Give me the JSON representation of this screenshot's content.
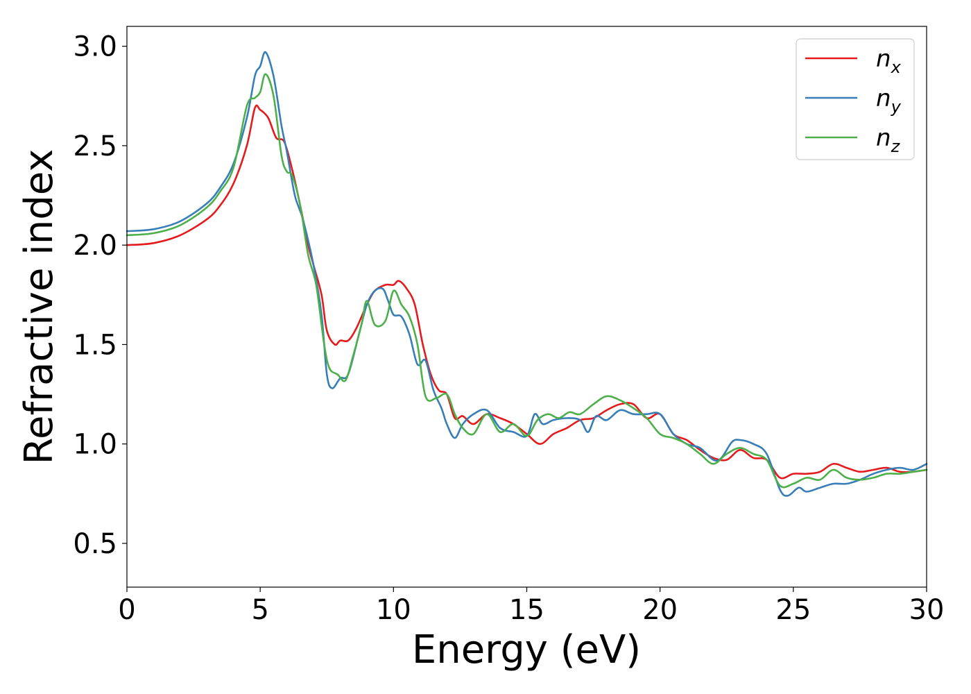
{
  "chart_data": {
    "type": "line",
    "title": "",
    "xlabel": "Energy (eV)",
    "ylabel": "Refractive index",
    "xlim": [
      0,
      30
    ],
    "ylim": [
      0.28,
      3.1
    ],
    "xticks": [
      0,
      5,
      10,
      15,
      20,
      25,
      30
    ],
    "xtick_labels": [
      "0",
      "5",
      "10",
      "15",
      "20",
      "25",
      "30"
    ],
    "yticks": [
      0.5,
      1.0,
      1.5,
      2.0,
      2.5,
      3.0
    ],
    "ytick_labels": [
      "0.5",
      "1.0",
      "1.5",
      "2.0",
      "2.5",
      "3.0"
    ],
    "grid": false,
    "legend_position": "top-right",
    "series": [
      {
        "name": "n",
        "subscript": "x",
        "color": "#e41a1c",
        "points": [
          [
            0,
            2.0
          ],
          [
            1,
            2.01
          ],
          [
            2,
            2.05
          ],
          [
            3,
            2.13
          ],
          [
            3.5,
            2.2
          ],
          [
            4,
            2.31
          ],
          [
            4.5,
            2.5
          ],
          [
            4.8,
            2.69
          ],
          [
            5.0,
            2.68
          ],
          [
            5.3,
            2.64
          ],
          [
            5.6,
            2.54
          ],
          [
            5.9,
            2.52
          ],
          [
            6.2,
            2.38
          ],
          [
            6.5,
            2.2
          ],
          [
            6.8,
            2.0
          ],
          [
            7.0,
            1.9
          ],
          [
            7.3,
            1.75
          ],
          [
            7.5,
            1.57
          ],
          [
            7.8,
            1.5
          ],
          [
            8.0,
            1.52
          ],
          [
            8.3,
            1.52
          ],
          [
            8.6,
            1.58
          ],
          [
            9.0,
            1.7
          ],
          [
            9.3,
            1.77
          ],
          [
            9.7,
            1.8
          ],
          [
            10.0,
            1.8
          ],
          [
            10.2,
            1.82
          ],
          [
            10.5,
            1.78
          ],
          [
            10.8,
            1.7
          ],
          [
            11.1,
            1.5
          ],
          [
            11.4,
            1.35
          ],
          [
            11.7,
            1.27
          ],
          [
            12.0,
            1.25
          ],
          [
            12.3,
            1.13
          ],
          [
            12.6,
            1.14
          ],
          [
            13.0,
            1.1
          ],
          [
            13.5,
            1.15
          ],
          [
            14.0,
            1.13
          ],
          [
            14.5,
            1.1
          ],
          [
            15.0,
            1.05
          ],
          [
            15.5,
            1.0
          ],
          [
            16.0,
            1.05
          ],
          [
            16.5,
            1.08
          ],
          [
            17.0,
            1.12
          ],
          [
            17.5,
            1.13
          ],
          [
            18.0,
            1.17
          ],
          [
            18.5,
            1.2
          ],
          [
            19.0,
            1.2
          ],
          [
            19.5,
            1.13
          ],
          [
            20.0,
            1.15
          ],
          [
            20.5,
            1.05
          ],
          [
            21.0,
            1.02
          ],
          [
            21.5,
            0.97
          ],
          [
            22.0,
            0.93
          ],
          [
            22.5,
            0.92
          ],
          [
            23.0,
            0.97
          ],
          [
            23.5,
            0.93
          ],
          [
            24.0,
            0.92
          ],
          [
            24.5,
            0.83
          ],
          [
            25.0,
            0.85
          ],
          [
            25.5,
            0.85
          ],
          [
            26.0,
            0.86
          ],
          [
            26.5,
            0.9
          ],
          [
            27.0,
            0.88
          ],
          [
            27.5,
            0.86
          ],
          [
            28.0,
            0.87
          ],
          [
            28.5,
            0.88
          ],
          [
            29.0,
            0.86
          ],
          [
            29.5,
            0.86
          ],
          [
            30.0,
            0.87
          ]
        ]
      },
      {
        "name": "n",
        "subscript": "y",
        "color": "#377eb8",
        "points": [
          [
            0,
            2.07
          ],
          [
            1,
            2.08
          ],
          [
            2,
            2.12
          ],
          [
            3,
            2.21
          ],
          [
            3.5,
            2.29
          ],
          [
            4,
            2.41
          ],
          [
            4.5,
            2.64
          ],
          [
            4.8,
            2.85
          ],
          [
            5.0,
            2.9
          ],
          [
            5.2,
            2.97
          ],
          [
            5.5,
            2.85
          ],
          [
            5.8,
            2.6
          ],
          [
            6.0,
            2.47
          ],
          [
            6.3,
            2.25
          ],
          [
            6.6,
            2.13
          ],
          [
            7.0,
            1.9
          ],
          [
            7.3,
            1.65
          ],
          [
            7.5,
            1.35
          ],
          [
            7.7,
            1.28
          ],
          [
            8.0,
            1.33
          ],
          [
            8.3,
            1.35
          ],
          [
            8.7,
            1.55
          ],
          [
            9.0,
            1.7
          ],
          [
            9.3,
            1.77
          ],
          [
            9.6,
            1.78
          ],
          [
            9.8,
            1.72
          ],
          [
            10.0,
            1.65
          ],
          [
            10.3,
            1.64
          ],
          [
            10.6,
            1.55
          ],
          [
            10.9,
            1.4
          ],
          [
            11.2,
            1.42
          ],
          [
            11.5,
            1.27
          ],
          [
            11.8,
            1.18
          ],
          [
            12.0,
            1.1
          ],
          [
            12.3,
            1.03
          ],
          [
            12.6,
            1.1
          ],
          [
            13.0,
            1.15
          ],
          [
            13.5,
            1.17
          ],
          [
            14.0,
            1.08
          ],
          [
            14.5,
            1.06
          ],
          [
            15.0,
            1.04
          ],
          [
            15.3,
            1.15
          ],
          [
            15.6,
            1.1
          ],
          [
            16.0,
            1.12
          ],
          [
            16.5,
            1.13
          ],
          [
            17.0,
            1.12
          ],
          [
            17.3,
            1.06
          ],
          [
            17.6,
            1.14
          ],
          [
            18.0,
            1.12
          ],
          [
            18.5,
            1.17
          ],
          [
            19.0,
            1.15
          ],
          [
            19.5,
            1.15
          ],
          [
            20.0,
            1.15
          ],
          [
            20.5,
            1.05
          ],
          [
            21.0,
            1.0
          ],
          [
            21.5,
            0.98
          ],
          [
            22.0,
            0.92
          ],
          [
            22.3,
            0.93
          ],
          [
            22.7,
            1.01
          ],
          [
            23.0,
            1.02
          ],
          [
            23.5,
            1.0
          ],
          [
            24.0,
            0.95
          ],
          [
            24.5,
            0.77
          ],
          [
            24.8,
            0.74
          ],
          [
            25.2,
            0.78
          ],
          [
            25.5,
            0.76
          ],
          [
            26.0,
            0.78
          ],
          [
            26.5,
            0.8
          ],
          [
            27.0,
            0.8
          ],
          [
            27.5,
            0.82
          ],
          [
            28.0,
            0.85
          ],
          [
            28.5,
            0.87
          ],
          [
            29.0,
            0.88
          ],
          [
            29.5,
            0.87
          ],
          [
            30.0,
            0.9
          ]
        ]
      },
      {
        "name": "n",
        "subscript": "z",
        "color": "#4daf4a",
        "points": [
          [
            0,
            2.05
          ],
          [
            1,
            2.06
          ],
          [
            2,
            2.1
          ],
          [
            3,
            2.19
          ],
          [
            3.5,
            2.27
          ],
          [
            4,
            2.39
          ],
          [
            4.5,
            2.7
          ],
          [
            4.8,
            2.74
          ],
          [
            5.0,
            2.77
          ],
          [
            5.2,
            2.86
          ],
          [
            5.5,
            2.75
          ],
          [
            5.8,
            2.45
          ],
          [
            6.0,
            2.37
          ],
          [
            6.2,
            2.35
          ],
          [
            6.5,
            2.2
          ],
          [
            6.8,
            1.95
          ],
          [
            7.1,
            1.8
          ],
          [
            7.4,
            1.5
          ],
          [
            7.6,
            1.38
          ],
          [
            7.9,
            1.35
          ],
          [
            8.2,
            1.32
          ],
          [
            8.5,
            1.45
          ],
          [
            8.8,
            1.6
          ],
          [
            9.0,
            1.72
          ],
          [
            9.3,
            1.6
          ],
          [
            9.7,
            1.62
          ],
          [
            10.0,
            1.77
          ],
          [
            10.3,
            1.7
          ],
          [
            10.6,
            1.64
          ],
          [
            10.9,
            1.5
          ],
          [
            11.2,
            1.24
          ],
          [
            11.6,
            1.23
          ],
          [
            12.0,
            1.25
          ],
          [
            12.3,
            1.15
          ],
          [
            12.6,
            1.08
          ],
          [
            13.0,
            1.05
          ],
          [
            13.5,
            1.15
          ],
          [
            14.0,
            1.06
          ],
          [
            14.5,
            1.1
          ],
          [
            15.0,
            1.04
          ],
          [
            15.4,
            1.12
          ],
          [
            15.8,
            1.15
          ],
          [
            16.2,
            1.13
          ],
          [
            16.6,
            1.16
          ],
          [
            17.0,
            1.15
          ],
          [
            17.5,
            1.2
          ],
          [
            18.0,
            1.24
          ],
          [
            18.5,
            1.22
          ],
          [
            19.0,
            1.18
          ],
          [
            19.5,
            1.13
          ],
          [
            20.0,
            1.05
          ],
          [
            20.5,
            1.03
          ],
          [
            21.0,
            1.0
          ],
          [
            21.5,
            0.95
          ],
          [
            22.0,
            0.9
          ],
          [
            22.5,
            0.95
          ],
          [
            23.0,
            0.98
          ],
          [
            23.5,
            0.95
          ],
          [
            24.0,
            0.92
          ],
          [
            24.5,
            0.79
          ],
          [
            25.0,
            0.8
          ],
          [
            25.5,
            0.83
          ],
          [
            26.0,
            0.82
          ],
          [
            26.5,
            0.87
          ],
          [
            27.0,
            0.83
          ],
          [
            27.5,
            0.82
          ],
          [
            28.0,
            0.83
          ],
          [
            28.5,
            0.85
          ],
          [
            29.0,
            0.85
          ],
          [
            29.5,
            0.86
          ],
          [
            30.0,
            0.87
          ]
        ]
      }
    ]
  }
}
